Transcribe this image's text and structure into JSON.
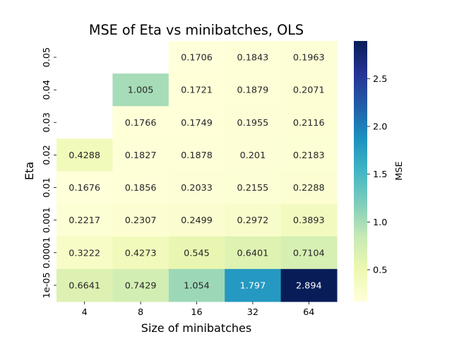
{
  "chart_data": {
    "type": "heatmap",
    "title": "MSE of Eta vs minibatches, OLS",
    "xlabel": "Size of minibatches",
    "ylabel": "Eta",
    "x_categories": [
      "4",
      "8",
      "16",
      "32",
      "64"
    ],
    "y_categories": [
      "0.05",
      "0.04",
      "0.03",
      "0.02",
      "0.01",
      "0.001",
      "0.0001",
      "1e-05"
    ],
    "values": [
      [
        null,
        null,
        0.1706,
        0.1843,
        0.1963
      ],
      [
        null,
        1.005,
        0.1721,
        0.1879,
        0.2071
      ],
      [
        null,
        0.1766,
        0.1749,
        0.1955,
        0.2116
      ],
      [
        0.4288,
        0.1827,
        0.1878,
        0.201,
        0.2183
      ],
      [
        0.1676,
        0.1856,
        0.2033,
        0.2155,
        0.2288
      ],
      [
        0.2217,
        0.2307,
        0.2499,
        0.2972,
        0.3893
      ],
      [
        0.3222,
        0.4273,
        0.545,
        0.6401,
        0.7104
      ],
      [
        0.6641,
        0.7429,
        1.054,
        1.797,
        2.894
      ]
    ],
    "value_labels": [
      [
        null,
        null,
        "0.1706",
        "0.1843",
        "0.1963"
      ],
      [
        null,
        "1.005",
        "0.1721",
        "0.1879",
        "0.2071"
      ],
      [
        null,
        "0.1766",
        "0.1749",
        "0.1955",
        "0.2116"
      ],
      [
        "0.4288",
        "0.1827",
        "0.1878",
        "0.201",
        "0.2183"
      ],
      [
        "0.1676",
        "0.1856",
        "0.2033",
        "0.2155",
        "0.2288"
      ],
      [
        "0.2217",
        "0.2307",
        "0.2499",
        "0.2972",
        "0.3893"
      ],
      [
        "0.3222",
        "0.4273",
        "0.545",
        "0.6401",
        "0.7104"
      ],
      [
        "0.6641",
        "0.7429",
        "1.054",
        "1.797",
        "2.894"
      ]
    ],
    "colorbar": {
      "label": "MSE",
      "min": 0.1676,
      "max": 2.894,
      "ticks": [
        "0.5",
        "1.0",
        "1.5",
        "2.0",
        "2.5"
      ],
      "colormap": "YlGnBu"
    },
    "colormap_stops": [
      "#ffffd9",
      "#edf8b1",
      "#c7e9b4",
      "#7fcdbb",
      "#41b6c4",
      "#1d91c0",
      "#225ea8",
      "#253494",
      "#081d58"
    ],
    "annotation_color_light": "#ffffff",
    "annotation_color_dark": "#262626"
  }
}
